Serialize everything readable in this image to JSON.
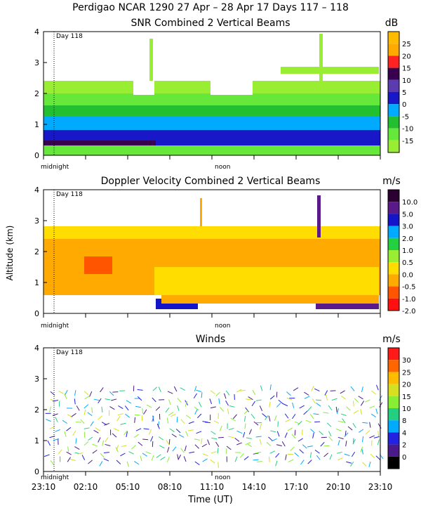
{
  "figure_title": "Perdigao NCAR 1290  27 Apr – 28 Apr 17 Days 117 – 118",
  "shared": {
    "ylabel": "Altitude (km)",
    "xlabel": "Time (UT)",
    "y_ticks": [
      "0",
      "1",
      "2",
      "3",
      "4"
    ],
    "day_marker": "Day 118",
    "midnight_label": "midnight",
    "noon_label": "noon",
    "time_ticks": [
      "23:10",
      "02:10",
      "05:10",
      "08:10",
      "11:10",
      "14:10",
      "17:10",
      "20:10",
      "23:10"
    ]
  },
  "chart_data": [
    {
      "type": "heatmap",
      "title": "SNR Combined 2 Vertical Beams",
      "units": "dB",
      "ylim": [
        0,
        4
      ],
      "colorbar_labels": [
        "25",
        "20",
        "15",
        "10",
        "5",
        "0",
        "-5",
        "-10",
        "-15"
      ],
      "colorbar_colors": [
        "#ffbb00",
        "#ffaa00",
        "#ff2222",
        "#3a0050",
        "#5a3cb0",
        "#1818c8",
        "#00aaff",
        "#22c030",
        "#66e83a",
        "#99ee33"
      ]
    },
    {
      "type": "heatmap",
      "title": "Doppler Velocity Combined 2 Vertical Beams",
      "units": "m/s",
      "ylim": [
        0,
        4
      ],
      "colorbar_labels": [
        "10.0",
        "5.0",
        "3.0",
        "2.0",
        "1.0",
        "0.5",
        "0.0",
        "-0.5",
        "-1.0",
        "-2.0"
      ],
      "colorbar_colors": [
        "#2a0030",
        "#5a1a8a",
        "#1414c8",
        "#00aaff",
        "#22d040",
        "#99ee33",
        "#ffdd00",
        "#ffaa00",
        "#ff5500",
        "#ff1010"
      ]
    },
    {
      "type": "scatter",
      "title": "Winds",
      "units": "m/s",
      "ylim": [
        0,
        4
      ],
      "colorbar_labels": [
        "30",
        "25",
        "20",
        "15",
        "10",
        "8",
        "4",
        "2",
        "0"
      ],
      "colorbar_colors": [
        "#ff1a1a",
        "#ff6600",
        "#ffbb00",
        "#d6e020",
        "#88ee33",
        "#22d080",
        "#00aaff",
        "#2222e0",
        "#4a1a8a",
        "#000000"
      ]
    }
  ]
}
